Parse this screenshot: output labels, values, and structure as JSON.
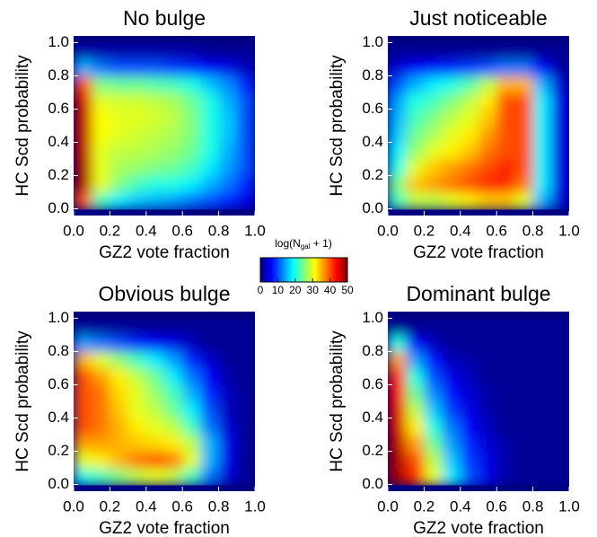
{
  "chart_data": [
    {
      "type": "heatmap",
      "title": "No bulge",
      "xlabel": "GZ2 vote fraction",
      "ylabel": "HC Scd probability",
      "xlim": [
        0,
        1
      ],
      "ylim": [
        -0.04,
        1.04
      ],
      "xticks": [
        {
          "value": 0,
          "label": "0.0"
        },
        0.2,
        0.4,
        0.6,
        0.8,
        {
          "value": 1,
          "label": "1.0"
        }
      ],
      "yticks": [
        {
          "value": 0,
          "label": "0.0"
        },
        0.2,
        0.4,
        0.6,
        0.8,
        {
          "value": 1,
          "label": "1.0"
        }
      ],
      "xbins": [
        0,
        0.1,
        0.2,
        0.3,
        0.4,
        0.5,
        0.6,
        0.7,
        0.8,
        0.9,
        1
      ],
      "ybins": [
        0,
        0.1,
        0.2,
        0.3,
        0.4,
        0.5,
        0.6,
        0.7,
        0.8,
        0.9,
        1
      ],
      "z": [
        [
          40,
          22,
          18,
          16,
          15,
          14,
          12,
          10,
          8,
          5
        ],
        [
          48,
          30,
          25,
          22,
          20,
          20,
          18,
          15,
          12,
          8
        ],
        [
          48,
          30,
          27,
          26,
          25,
          24,
          22,
          18,
          14,
          10
        ],
        [
          47,
          30,
          28,
          28,
          27,
          26,
          24,
          20,
          15,
          10
        ],
        [
          47,
          31,
          30,
          29,
          28,
          27,
          25,
          20,
          16,
          10
        ],
        [
          47,
          31,
          30,
          30,
          29,
          28,
          25,
          20,
          16,
          10
        ],
        [
          46,
          30,
          29,
          29,
          28,
          27,
          24,
          20,
          15,
          10
        ],
        [
          40,
          25,
          24,
          24,
          23,
          22,
          20,
          16,
          13,
          8
        ],
        [
          15,
          12,
          10,
          10,
          10,
          9,
          8,
          6,
          5,
          3
        ],
        [
          2,
          2,
          2,
          2,
          2,
          2,
          2,
          1,
          1,
          1
        ]
      ]
    },
    {
      "type": "heatmap",
      "title": "Just noticeable",
      "xlabel": "GZ2 vote fraction",
      "ylabel": "HC Scd probability",
      "xlim": [
        0,
        1
      ],
      "ylim": [
        -0.04,
        1.04
      ],
      "xticks": [
        {
          "value": 0,
          "label": "0.0"
        },
        0.2,
        0.4,
        0.6,
        0.8,
        {
          "value": 1,
          "label": "1.0"
        }
      ],
      "yticks": [
        {
          "value": 0,
          "label": "0.0"
        },
        0.2,
        0.4,
        0.6,
        0.8,
        {
          "value": 1,
          "label": "1.0"
        }
      ],
      "xbins": [
        0,
        0.1,
        0.2,
        0.3,
        0.4,
        0.5,
        0.6,
        0.7,
        0.8,
        0.9,
        1
      ],
      "ybins": [
        0,
        0.1,
        0.2,
        0.3,
        0.4,
        0.5,
        0.6,
        0.7,
        0.8,
        0.9,
        1
      ],
      "z": [
        [
          22,
          28,
          28,
          30,
          32,
          34,
          34,
          30,
          15,
          4
        ],
        [
          25,
          34,
          36,
          38,
          40,
          42,
          42,
          38,
          18,
          5
        ],
        [
          20,
          30,
          34,
          36,
          38,
          40,
          42,
          40,
          18,
          5
        ],
        [
          18,
          26,
          30,
          32,
          34,
          38,
          40,
          40,
          18,
          5
        ],
        [
          16,
          24,
          27,
          30,
          32,
          36,
          40,
          40,
          18,
          5
        ],
        [
          15,
          22,
          25,
          28,
          30,
          34,
          40,
          40,
          18,
          5
        ],
        [
          14,
          20,
          22,
          25,
          28,
          32,
          40,
          40,
          18,
          5
        ],
        [
          10,
          15,
          18,
          20,
          23,
          28,
          35,
          35,
          15,
          4
        ],
        [
          4,
          6,
          7,
          8,
          9,
          10,
          12,
          12,
          6,
          2
        ],
        [
          1,
          1,
          1,
          1,
          1,
          1,
          1,
          1,
          1,
          1
        ]
      ]
    },
    {
      "type": "heatmap",
      "title": "Obvious bulge",
      "xlabel": "GZ2 vote fraction",
      "ylabel": "HC Scd probability",
      "xlim": [
        0,
        1
      ],
      "ylim": [
        -0.04,
        1.04
      ],
      "xticks": [
        {
          "value": 0,
          "label": "0.0"
        },
        0.2,
        0.4,
        0.6,
        0.8,
        {
          "value": 1,
          "label": "1.0"
        }
      ],
      "yticks": [
        {
          "value": 0,
          "label": "0.0"
        },
        0.2,
        0.4,
        0.6,
        0.8,
        {
          "value": 1,
          "label": "1.0"
        }
      ],
      "xbins": [
        0,
        0.1,
        0.2,
        0.3,
        0.4,
        0.5,
        0.6,
        0.7,
        0.8,
        0.9,
        1
      ],
      "ybins": [
        0,
        0.1,
        0.2,
        0.3,
        0.4,
        0.5,
        0.6,
        0.7,
        0.8,
        0.9,
        1
      ],
      "z": [
        [
          20,
          22,
          25,
          28,
          30,
          28,
          22,
          12,
          4,
          1
        ],
        [
          30,
          32,
          35,
          38,
          40,
          38,
          30,
          15,
          5,
          1
        ],
        [
          36,
          36,
          35,
          34,
          33,
          32,
          28,
          15,
          5,
          1
        ],
        [
          40,
          38,
          35,
          32,
          30,
          28,
          22,
          12,
          4,
          1
        ],
        [
          40,
          38,
          34,
          30,
          28,
          24,
          18,
          10,
          3,
          1
        ],
        [
          40,
          38,
          33,
          30,
          26,
          22,
          15,
          8,
          3,
          1
        ],
        [
          40,
          36,
          32,
          28,
          24,
          18,
          12,
          6,
          2,
          1
        ],
        [
          35,
          30,
          26,
          22,
          18,
          14,
          8,
          4,
          1,
          1
        ],
        [
          14,
          12,
          10,
          8,
          6,
          5,
          3,
          1,
          1,
          1
        ],
        [
          1,
          1,
          1,
          1,
          1,
          1,
          1,
          1,
          1,
          1
        ]
      ]
    },
    {
      "type": "heatmap",
      "title": "Dominant bulge",
      "xlabel": "GZ2 vote fraction",
      "ylabel": "HC Scd probability",
      "xlim": [
        0,
        1
      ],
      "ylim": [
        -0.04,
        1.04
      ],
      "xticks": [
        {
          "value": 0,
          "label": "0.0"
        },
        0.2,
        0.4,
        0.6,
        0.8,
        {
          "value": 1,
          "label": "1.0"
        }
      ],
      "yticks": [
        {
          "value": 0,
          "label": "0.0"
        },
        0.2,
        0.4,
        0.6,
        0.8,
        {
          "value": 1,
          "label": "1.0"
        }
      ],
      "xbins": [
        0,
        0.1,
        0.2,
        0.3,
        0.4,
        0.5,
        0.6,
        0.7,
        0.8,
        0.9,
        1
      ],
      "ybins": [
        0,
        0.1,
        0.2,
        0.3,
        0.4,
        0.5,
        0.6,
        0.7,
        0.8,
        0.9,
        1
      ],
      "z": [
        [
          48,
          42,
          30,
          18,
          10,
          5,
          2,
          1,
          1,
          1
        ],
        [
          48,
          40,
          28,
          16,
          9,
          5,
          2,
          1,
          1,
          1
        ],
        [
          47,
          36,
          24,
          14,
          8,
          4,
          2,
          1,
          1,
          1
        ],
        [
          46,
          32,
          20,
          12,
          6,
          3,
          1,
          1,
          1,
          1
        ],
        [
          45,
          28,
          16,
          9,
          5,
          2,
          1,
          1,
          1,
          1
        ],
        [
          44,
          24,
          13,
          7,
          4,
          2,
          1,
          1,
          1,
          1
        ],
        [
          42,
          20,
          10,
          5,
          3,
          1,
          1,
          1,
          1,
          1
        ],
        [
          36,
          14,
          7,
          3,
          2,
          1,
          1,
          1,
          1,
          1
        ],
        [
          20,
          6,
          3,
          1,
          1,
          1,
          1,
          1,
          1,
          1
        ],
        [
          1,
          1,
          1,
          1,
          1,
          1,
          1,
          1,
          1,
          1
        ]
      ]
    }
  ],
  "colorbar": {
    "label": "log(N",
    "label_sub": "gal",
    "label_end": " + 1)",
    "lim": [
      0,
      50
    ],
    "ticks": [
      0,
      10,
      20,
      30,
      40,
      50
    ],
    "colormap": "jet"
  }
}
